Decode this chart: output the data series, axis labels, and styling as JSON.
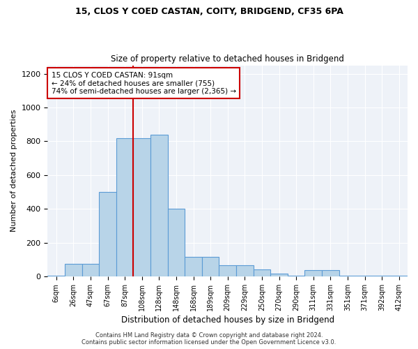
{
  "title_line1": "15, CLOS Y COED CASTAN, COITY, BRIDGEND, CF35 6PA",
  "title_line2": "Size of property relative to detached houses in Bridgend",
  "xlabel": "Distribution of detached houses by size in Bridgend",
  "ylabel": "Number of detached properties",
  "categories": [
    "6sqm",
    "26sqm",
    "47sqm",
    "67sqm",
    "87sqm",
    "108sqm",
    "128sqm",
    "148sqm",
    "168sqm",
    "189sqm",
    "209sqm",
    "229sqm",
    "250sqm",
    "270sqm",
    "290sqm",
    "311sqm",
    "331sqm",
    "351sqm",
    "371sqm",
    "392sqm",
    "412sqm"
  ],
  "values": [
    5,
    75,
    75,
    500,
    820,
    820,
    840,
    400,
    115,
    115,
    65,
    65,
    40,
    15,
    5,
    35,
    35,
    5,
    5,
    5,
    5
  ],
  "bar_color": "#b8d4e8",
  "bar_edge_color": "#5b9bd5",
  "vline_index": 4.5,
  "vline_color": "#cc0000",
  "annotation_text": "15 CLOS Y COED CASTAN: 91sqm\n← 24% of detached houses are smaller (755)\n74% of semi-detached houses are larger (2,365) →",
  "annotation_box_color": "#ffffff",
  "annotation_box_edge": "#cc0000",
  "ylim": [
    0,
    1250
  ],
  "yticks": [
    0,
    200,
    400,
    600,
    800,
    1000,
    1200
  ],
  "background_color": "#eef2f8",
  "footer1": "Contains HM Land Registry data © Crown copyright and database right 2024.",
  "footer2": "Contains public sector information licensed under the Open Government Licence v3.0."
}
